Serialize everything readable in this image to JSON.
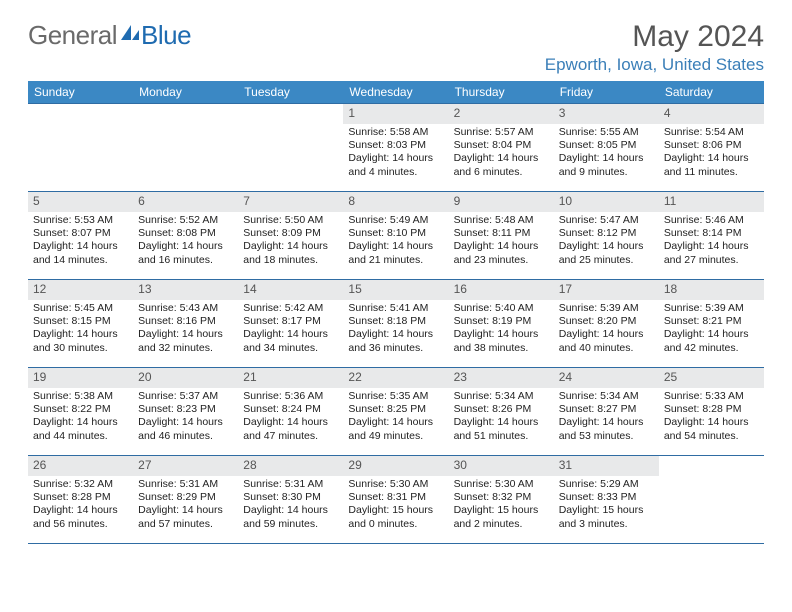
{
  "logo": {
    "text1": "General",
    "text2": "Blue"
  },
  "title": "May 2024",
  "location": "Epworth, Iowa, United States",
  "colors": {
    "header_bg": "#3b88c4",
    "header_text": "#ffffff",
    "row_border": "#2f6ca3",
    "daynum_bg": "#e8e9ea",
    "daynum_text": "#555555",
    "logo_gray": "#6a6a6a",
    "logo_blue": "#1f6bb0",
    "location_color": "#3b7fb8",
    "body_text": "#222222",
    "title_color": "#555555"
  },
  "weekdays": [
    "Sunday",
    "Monday",
    "Tuesday",
    "Wednesday",
    "Thursday",
    "Friday",
    "Saturday"
  ],
  "weeks": [
    [
      null,
      null,
      null,
      {
        "n": "1",
        "sr": "5:58 AM",
        "ss": "8:03 PM",
        "dl": "14 hours and 4 minutes."
      },
      {
        "n": "2",
        "sr": "5:57 AM",
        "ss": "8:04 PM",
        "dl": "14 hours and 6 minutes."
      },
      {
        "n": "3",
        "sr": "5:55 AM",
        "ss": "8:05 PM",
        "dl": "14 hours and 9 minutes."
      },
      {
        "n": "4",
        "sr": "5:54 AM",
        "ss": "8:06 PM",
        "dl": "14 hours and 11 minutes."
      }
    ],
    [
      {
        "n": "5",
        "sr": "5:53 AM",
        "ss": "8:07 PM",
        "dl": "14 hours and 14 minutes."
      },
      {
        "n": "6",
        "sr": "5:52 AM",
        "ss": "8:08 PM",
        "dl": "14 hours and 16 minutes."
      },
      {
        "n": "7",
        "sr": "5:50 AM",
        "ss": "8:09 PM",
        "dl": "14 hours and 18 minutes."
      },
      {
        "n": "8",
        "sr": "5:49 AM",
        "ss": "8:10 PM",
        "dl": "14 hours and 21 minutes."
      },
      {
        "n": "9",
        "sr": "5:48 AM",
        "ss": "8:11 PM",
        "dl": "14 hours and 23 minutes."
      },
      {
        "n": "10",
        "sr": "5:47 AM",
        "ss": "8:12 PM",
        "dl": "14 hours and 25 minutes."
      },
      {
        "n": "11",
        "sr": "5:46 AM",
        "ss": "8:14 PM",
        "dl": "14 hours and 27 minutes."
      }
    ],
    [
      {
        "n": "12",
        "sr": "5:45 AM",
        "ss": "8:15 PM",
        "dl": "14 hours and 30 minutes."
      },
      {
        "n": "13",
        "sr": "5:43 AM",
        "ss": "8:16 PM",
        "dl": "14 hours and 32 minutes."
      },
      {
        "n": "14",
        "sr": "5:42 AM",
        "ss": "8:17 PM",
        "dl": "14 hours and 34 minutes."
      },
      {
        "n": "15",
        "sr": "5:41 AM",
        "ss": "8:18 PM",
        "dl": "14 hours and 36 minutes."
      },
      {
        "n": "16",
        "sr": "5:40 AM",
        "ss": "8:19 PM",
        "dl": "14 hours and 38 minutes."
      },
      {
        "n": "17",
        "sr": "5:39 AM",
        "ss": "8:20 PM",
        "dl": "14 hours and 40 minutes."
      },
      {
        "n": "18",
        "sr": "5:39 AM",
        "ss": "8:21 PM",
        "dl": "14 hours and 42 minutes."
      }
    ],
    [
      {
        "n": "19",
        "sr": "5:38 AM",
        "ss": "8:22 PM",
        "dl": "14 hours and 44 minutes."
      },
      {
        "n": "20",
        "sr": "5:37 AM",
        "ss": "8:23 PM",
        "dl": "14 hours and 46 minutes."
      },
      {
        "n": "21",
        "sr": "5:36 AM",
        "ss": "8:24 PM",
        "dl": "14 hours and 47 minutes."
      },
      {
        "n": "22",
        "sr": "5:35 AM",
        "ss": "8:25 PM",
        "dl": "14 hours and 49 minutes."
      },
      {
        "n": "23",
        "sr": "5:34 AM",
        "ss": "8:26 PM",
        "dl": "14 hours and 51 minutes."
      },
      {
        "n": "24",
        "sr": "5:34 AM",
        "ss": "8:27 PM",
        "dl": "14 hours and 53 minutes."
      },
      {
        "n": "25",
        "sr": "5:33 AM",
        "ss": "8:28 PM",
        "dl": "14 hours and 54 minutes."
      }
    ],
    [
      {
        "n": "26",
        "sr": "5:32 AM",
        "ss": "8:28 PM",
        "dl": "14 hours and 56 minutes."
      },
      {
        "n": "27",
        "sr": "5:31 AM",
        "ss": "8:29 PM",
        "dl": "14 hours and 57 minutes."
      },
      {
        "n": "28",
        "sr": "5:31 AM",
        "ss": "8:30 PM",
        "dl": "14 hours and 59 minutes."
      },
      {
        "n": "29",
        "sr": "5:30 AM",
        "ss": "8:31 PM",
        "dl": "15 hours and 0 minutes."
      },
      {
        "n": "30",
        "sr": "5:30 AM",
        "ss": "8:32 PM",
        "dl": "15 hours and 2 minutes."
      },
      {
        "n": "31",
        "sr": "5:29 AM",
        "ss": "8:33 PM",
        "dl": "15 hours and 3 minutes."
      },
      null
    ]
  ],
  "labels": {
    "sunrise": "Sunrise: ",
    "sunset": "Sunset: ",
    "daylight": "Daylight: "
  }
}
